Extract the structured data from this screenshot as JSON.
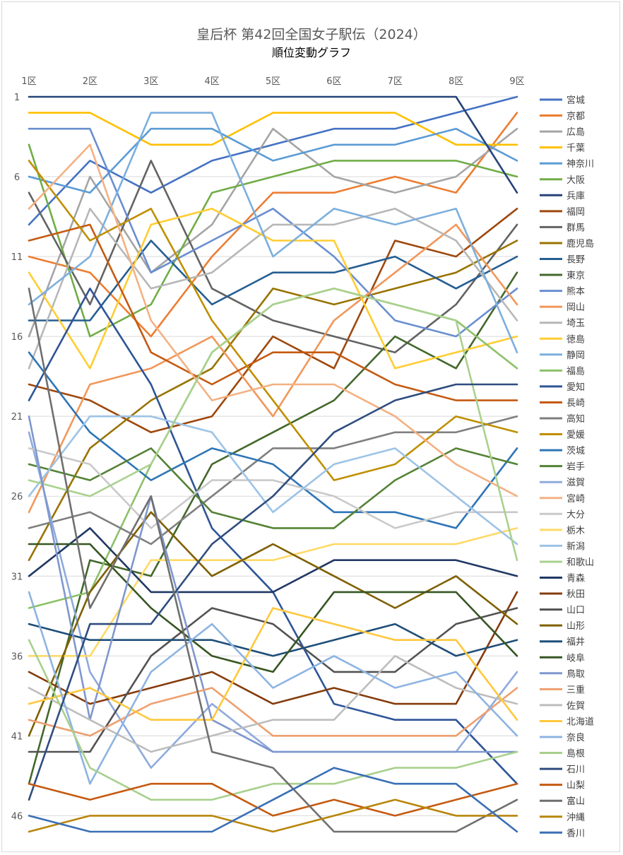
{
  "title": "皇后杯 第42回全国女子駅伝（2024）",
  "subtitle": "順位変動グラフ",
  "chart_data": {
    "type": "line",
    "categories": [
      "1区",
      "2区",
      "3区",
      "4区",
      "5区",
      "6区",
      "7区",
      "8区",
      "9区"
    ],
    "y_ticks": [
      "1",
      "6",
      "11",
      "16",
      "21",
      "26",
      "31",
      "36",
      "41",
      "46"
    ],
    "ylim": [
      1,
      47
    ],
    "y_reversed": true,
    "grid": true,
    "legend_position": "right",
    "series": [
      {
        "name": "宮城",
        "color": "#4472C4",
        "values": [
          9,
          5,
          7,
          5,
          4,
          3,
          3,
          2,
          1
        ]
      },
      {
        "name": "京都",
        "color": "#ED7D31",
        "values": [
          11,
          12,
          16,
          11,
          7,
          7,
          6,
          7,
          2
        ]
      },
      {
        "name": "広島",
        "color": "#A5A5A5",
        "values": [
          16,
          6,
          12,
          9,
          3,
          6,
          7,
          6,
          3
        ]
      },
      {
        "name": "千葉",
        "color": "#FFC000",
        "values": [
          2,
          2,
          4,
          4,
          2,
          2,
          2,
          4,
          4
        ]
      },
      {
        "name": "神奈川",
        "color": "#5B9BD5",
        "values": [
          6,
          7,
          3,
          3,
          5,
          4,
          4,
          3,
          5
        ]
      },
      {
        "name": "大阪",
        "color": "#70AD47",
        "values": [
          4,
          16,
          14,
          7,
          6,
          5,
          5,
          5,
          6
        ]
      },
      {
        "name": "兵庫",
        "color": "#264478",
        "values": [
          1,
          1,
          1,
          1,
          1,
          1,
          1,
          1,
          7
        ]
      },
      {
        "name": "福岡",
        "color": "#9E480E",
        "values": [
          19,
          20,
          22,
          21,
          16,
          18,
          10,
          11,
          8
        ]
      },
      {
        "name": "群馬",
        "color": "#636363",
        "values": [
          7,
          14,
          5,
          13,
          15,
          16,
          17,
          14,
          9
        ]
      },
      {
        "name": "鹿児島",
        "color": "#997300",
        "values": [
          30,
          23,
          20,
          18,
          13,
          14,
          13,
          12,
          10
        ]
      },
      {
        "name": "長野",
        "color": "#255E91",
        "values": [
          15,
          15,
          10,
          14,
          12,
          12,
          11,
          13,
          11
        ]
      },
      {
        "name": "東京",
        "color": "#43682B",
        "values": [
          44,
          30,
          31,
          24,
          22,
          20,
          16,
          18,
          12
        ]
      },
      {
        "name": "熊本",
        "color": "#698ED0",
        "values": [
          3,
          3,
          12,
          10,
          8,
          11,
          15,
          16,
          13
        ]
      },
      {
        "name": "岡山",
        "color": "#F1975A",
        "values": [
          27,
          19,
          18,
          16,
          21,
          15,
          12,
          9,
          14
        ]
      },
      {
        "name": "埼玉",
        "color": "#B7B7B7",
        "values": [
          18,
          8,
          13,
          12,
          9,
          9,
          8,
          10,
          15
        ]
      },
      {
        "name": "徳島",
        "color": "#FFCD33",
        "values": [
          12,
          18,
          9,
          8,
          10,
          10,
          18,
          17,
          16
        ]
      },
      {
        "name": "静岡",
        "color": "#7CAFDD",
        "values": [
          14,
          11,
          2,
          2,
          11,
          8,
          9,
          8,
          17
        ]
      },
      {
        "name": "福島",
        "color": "#8CC168",
        "values": [
          33,
          32,
          24,
          17,
          14,
          13,
          14,
          15,
          18
        ]
      },
      {
        "name": "愛知",
        "color": "#2E5597",
        "values": [
          20,
          13,
          19,
          28,
          32,
          39,
          40,
          40,
          44
        ]
      },
      {
        "name": "長崎",
        "color": "#C55A11",
        "values": [
          10,
          9,
          17,
          19,
          17,
          17,
          19,
          20,
          20
        ]
      },
      {
        "name": "高知",
        "color": "#7F7F7F",
        "values": [
          28,
          27,
          29,
          26,
          23,
          23,
          22,
          22,
          21
        ]
      },
      {
        "name": "愛媛",
        "color": "#BF8F00",
        "values": [
          5,
          10,
          8,
          15,
          20,
          25,
          24,
          21,
          22
        ]
      },
      {
        "name": "茨城",
        "color": "#2E75B6",
        "values": [
          17,
          22,
          25,
          23,
          24,
          27,
          27,
          28,
          23
        ]
      },
      {
        "name": "岩手",
        "color": "#548235",
        "values": [
          24,
          25,
          23,
          27,
          28,
          28,
          25,
          23,
          24
        ]
      },
      {
        "name": "滋賀",
        "color": "#8FAADC",
        "values": [
          22,
          37,
          43,
          39,
          42,
          42,
          42,
          42,
          37
        ]
      },
      {
        "name": "宮崎",
        "color": "#F4B183",
        "values": [
          8,
          4,
          15,
          20,
          19,
          19,
          21,
          24,
          26
        ]
      },
      {
        "name": "大分",
        "color": "#C9C9C9",
        "values": [
          23,
          24,
          28,
          25,
          25,
          26,
          28,
          27,
          27
        ]
      },
      {
        "name": "栃木",
        "color": "#FFD966",
        "values": [
          36,
          36,
          30,
          30,
          30,
          29,
          29,
          29,
          28
        ]
      },
      {
        "name": "新潟",
        "color": "#9DC3E6",
        "values": [
          26,
          21,
          21,
          22,
          27,
          24,
          23,
          26,
          29
        ]
      },
      {
        "name": "和歌山",
        "color": "#A9D18E",
        "values": [
          25,
          26,
          24,
          17,
          14,
          13,
          14,
          15,
          30
        ]
      },
      {
        "name": "青森",
        "color": "#203864",
        "values": [
          31,
          28,
          32,
          32,
          32,
          30,
          30,
          30,
          31
        ]
      },
      {
        "name": "秋田",
        "color": "#843C0C",
        "values": [
          37,
          39,
          38,
          37,
          39,
          38,
          39,
          39,
          32
        ]
      },
      {
        "name": "山口",
        "color": "#525252",
        "values": [
          42,
          42,
          36,
          33,
          34,
          37,
          37,
          34,
          33
        ]
      },
      {
        "name": "山形",
        "color": "#7F6000",
        "values": [
          41,
          32,
          27,
          31,
          29,
          31,
          33,
          31,
          34
        ]
      },
      {
        "name": "福井",
        "color": "#1F4E79",
        "values": [
          34,
          35,
          35,
          35,
          36,
          35,
          34,
          36,
          35
        ]
      },
      {
        "name": "岐阜",
        "color": "#375623",
        "values": [
          29,
          29,
          33,
          36,
          37,
          32,
          32,
          32,
          36
        ]
      },
      {
        "name": "鳥取",
        "color": "#7F97CE",
        "values": [
          21,
          40,
          26,
          40,
          42,
          42,
          42,
          42,
          42
        ]
      },
      {
        "name": "三重",
        "color": "#EE9F6F",
        "values": [
          40,
          41,
          39,
          38,
          41,
          41,
          41,
          41,
          38
        ]
      },
      {
        "name": "佐賀",
        "color": "#BDBDBD",
        "values": [
          38,
          40,
          42,
          41,
          40,
          40,
          36,
          38,
          39
        ]
      },
      {
        "name": "北海道",
        "color": "#FFC83D",
        "values": [
          39,
          38,
          40,
          40,
          33,
          34,
          35,
          35,
          40
        ]
      },
      {
        "name": "奈良",
        "color": "#8DB4E2",
        "values": [
          32,
          44,
          37,
          34,
          38,
          36,
          38,
          37,
          41
        ]
      },
      {
        "name": "島根",
        "color": "#A8D08D",
        "values": [
          35,
          43,
          45,
          45,
          44,
          44,
          43,
          43,
          42
        ]
      },
      {
        "name": "石川",
        "color": "#2F4D7E",
        "values": [
          45,
          34,
          34,
          29,
          26,
          22,
          20,
          19,
          19
        ]
      },
      {
        "name": "山梨",
        "color": "#C55A11",
        "values": [
          44,
          45,
          44,
          44,
          46,
          45,
          46,
          45,
          44
        ]
      },
      {
        "name": "富山",
        "color": "#6F6F6F",
        "values": [
          13,
          33,
          26,
          42,
          43,
          47,
          47,
          47,
          45
        ]
      },
      {
        "name": "沖縄",
        "color": "#B8860B",
        "values": [
          47,
          46,
          46,
          46,
          47,
          46,
          45,
          46,
          46
        ]
      },
      {
        "name": "香川",
        "color": "#3A6FB5",
        "values": [
          46,
          47,
          47,
          47,
          45,
          43,
          44,
          44,
          47
        ]
      }
    ]
  }
}
